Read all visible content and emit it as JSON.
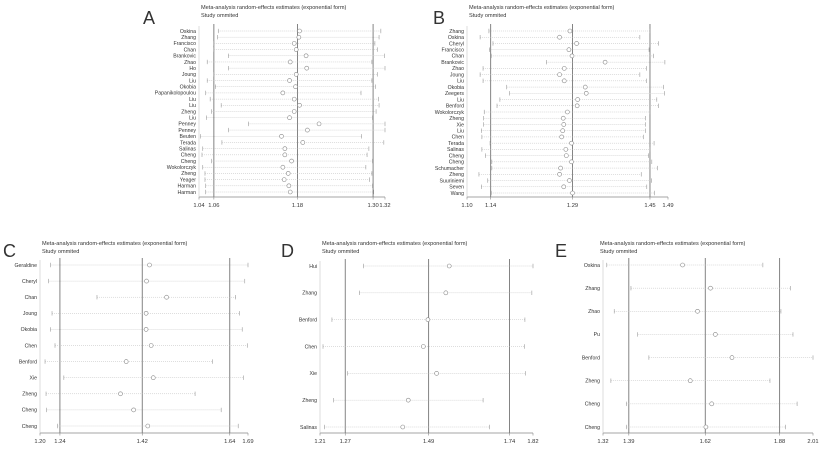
{
  "chart_data": [
    {
      "type": "forest",
      "panel_label": "A",
      "title": "Meta-analysis random-effects estimates (exponential form)",
      "subtitle": "Study ommited",
      "xscale": "log",
      "xlim": [
        1.04,
        1.32
      ],
      "ticks": [
        "1.04",
        "1.06",
        "1.18",
        "1.30",
        "1.32"
      ],
      "reference_lines": [
        1.06,
        1.18,
        1.3
      ],
      "studies": [
        {
          "name": "Oskina",
          "est": 1.183,
          "lo": 1.066,
          "hi": 1.313
        },
        {
          "name": "Zhang",
          "est": 1.182,
          "lo": 1.065,
          "hi": 1.31
        },
        {
          "name": "Francisco",
          "est": 1.175,
          "lo": 1.06,
          "hi": 1.303
        },
        {
          "name": "Chan",
          "est": 1.178,
          "lo": 1.06,
          "hi": 1.307
        },
        {
          "name": "Brankovic",
          "est": 1.193,
          "lo": 1.08,
          "hi": 1.319
        },
        {
          "name": "Zhao",
          "est": 1.169,
          "lo": 1.051,
          "hi": 1.298
        },
        {
          "name": "Ho",
          "est": 1.194,
          "lo": 1.08,
          "hi": 1.32
        },
        {
          "name": "Joung",
          "est": 1.178,
          "lo": 1.06,
          "hi": 1.307
        },
        {
          "name": "Liu",
          "est": 1.168,
          "lo": 1.051,
          "hi": 1.298
        },
        {
          "name": "Okobia",
          "est": 1.177,
          "lo": 1.062,
          "hi": 1.304
        },
        {
          "name": "Papanikolopoulou",
          "est": 1.158,
          "lo": 1.049,
          "hi": 1.28
        },
        {
          "name": "Liu",
          "est": 1.175,
          "lo": 1.055,
          "hi": 1.309
        },
        {
          "name": "Liu",
          "est": 1.183,
          "lo": 1.07,
          "hi": 1.31
        },
        {
          "name": "Zheng",
          "est": 1.175,
          "lo": 1.057,
          "hi": 1.305
        },
        {
          "name": "Liu",
          "est": 1.168,
          "lo": 1.05,
          "hi": 1.299
        },
        {
          "name": "Penney",
          "est": 1.213,
          "lo": 1.108,
          "hi": 1.32
        },
        {
          "name": "Penney",
          "est": 1.195,
          "lo": 1.08,
          "hi": 1.32
        },
        {
          "name": "Beuten",
          "est": 1.156,
          "lo": 1.042,
          "hi": 1.281
        },
        {
          "name": "Terada",
          "est": 1.188,
          "lo": 1.071,
          "hi": 1.318
        },
        {
          "name": "Salinas",
          "est": 1.161,
          "lo": 1.045,
          "hi": 1.293
        },
        {
          "name": "Cheng",
          "est": 1.161,
          "lo": 1.044,
          "hi": 1.29
        },
        {
          "name": "Cheng",
          "est": 1.171,
          "lo": 1.057,
          "hi": 1.299
        },
        {
          "name": "Wokolorczyk",
          "est": 1.158,
          "lo": 1.045,
          "hi": 1.288
        },
        {
          "name": "Zheng",
          "est": 1.166,
          "lo": 1.048,
          "hi": 1.298
        },
        {
          "name": "Yeager",
          "est": 1.16,
          "lo": 1.048,
          "hi": 1.294
        },
        {
          "name": "Harman",
          "est": 1.167,
          "lo": 1.049,
          "hi": 1.299
        },
        {
          "name": "Harman",
          "est": 1.169,
          "lo": 1.049,
          "hi": 1.301
        }
      ]
    },
    {
      "type": "forest",
      "panel_label": "B",
      "title": "Meta-analysis random-effects estimates (exponential form)",
      "subtitle": "Study ommited",
      "xscale": "log",
      "xlim": [
        1.1,
        1.49
      ],
      "ticks": [
        "1.10",
        "1.14",
        "1.29",
        "1.45",
        "1.49"
      ],
      "reference_lines": [
        1.14,
        1.29,
        1.45
      ],
      "studies": [
        {
          "name": "Zhang",
          "est": 1.285,
          "lo": 1.137,
          "hi": 1.45
        },
        {
          "name": "Oskina",
          "est": 1.265,
          "lo": 1.122,
          "hi": 1.428
        },
        {
          "name": "Cheryl",
          "est": 1.298,
          "lo": 1.144,
          "hi": 1.469
        },
        {
          "name": "Francisco",
          "est": 1.283,
          "lo": 1.138,
          "hi": 1.448
        },
        {
          "name": "Chan",
          "est": 1.289,
          "lo": 1.141,
          "hi": 1.458
        },
        {
          "name": "Brankovic",
          "est": 1.355,
          "lo": 1.24,
          "hi": 1.483
        },
        {
          "name": "Zhao",
          "est": 1.274,
          "lo": 1.127,
          "hi": 1.442
        },
        {
          "name": "Joung",
          "est": 1.265,
          "lo": 1.122,
          "hi": 1.428
        },
        {
          "name": "Liu",
          "est": 1.274,
          "lo": 1.127,
          "hi": 1.442
        },
        {
          "name": "Okobia",
          "est": 1.315,
          "lo": 1.168,
          "hi": 1.48
        },
        {
          "name": "Zeegers",
          "est": 1.317,
          "lo": 1.173,
          "hi": 1.482
        },
        {
          "name": "Liu",
          "est": 1.3,
          "lo": 1.156,
          "hi": 1.465
        },
        {
          "name": "Benford",
          "est": 1.299,
          "lo": 1.151,
          "hi": 1.469
        },
        {
          "name": "Wokolorczyk",
          "est": 1.28,
          "lo": 1.129,
          "hi": 1.45
        },
        {
          "name": "Zheng",
          "est": 1.272,
          "lo": 1.128,
          "hi": 1.44
        },
        {
          "name": "Xie",
          "est": 1.273,
          "lo": 1.128,
          "hi": 1.44
        },
        {
          "name": "Liu",
          "est": 1.271,
          "lo": 1.124,
          "hi": 1.44
        },
        {
          "name": "Chen",
          "est": 1.269,
          "lo": 1.125,
          "hi": 1.436
        },
        {
          "name": "Terada",
          "est": 1.288,
          "lo": 1.139,
          "hi": 1.459
        },
        {
          "name": "Salinas",
          "est": 1.277,
          "lo": 1.125,
          "hi": 1.45
        },
        {
          "name": "Cheng",
          "est": 1.278,
          "lo": 1.131,
          "hi": 1.447
        },
        {
          "name": "Cheng",
          "est": 1.288,
          "lo": 1.142,
          "hi": 1.454
        },
        {
          "name": "Schumacher",
          "est": 1.267,
          "lo": 1.142,
          "hi": 1.467
        },
        {
          "name": "Zheng",
          "est": 1.265,
          "lo": 1.12,
          "hi": 1.431
        },
        {
          "name": "Suuriniemi",
          "est": 1.284,
          "lo": 1.135,
          "hi": 1.453
        },
        {
          "name": "Seven",
          "est": 1.273,
          "lo": 1.124,
          "hi": 1.443
        },
        {
          "name": "Wang",
          "est": 1.29,
          "lo": 1.141,
          "hi": 1.46
        }
      ]
    },
    {
      "type": "forest",
      "panel_label": "C",
      "title": "Meta-analysis random-effects estimates (exponential form)",
      "subtitle": "Study ommited",
      "xscale": "log",
      "xlim": [
        1.2,
        1.69
      ],
      "ticks": [
        "1.20",
        "1.24",
        "1.42",
        "1.64",
        "1.69"
      ],
      "reference_lines": [
        1.24,
        1.42,
        1.64
      ],
      "studies": [
        {
          "name": "Geraldine",
          "est": 1.437,
          "lo": 1.221,
          "hi": 1.69
        },
        {
          "name": "Cheryl",
          "est": 1.43,
          "lo": 1.217,
          "hi": 1.681
        },
        {
          "name": "Chan",
          "est": 1.478,
          "lo": 1.318,
          "hi": 1.656
        },
        {
          "name": "Joung",
          "est": 1.429,
          "lo": 1.224,
          "hi": 1.667
        },
        {
          "name": "Okobia",
          "est": 1.429,
          "lo": 1.221,
          "hi": 1.674
        },
        {
          "name": "Chen",
          "est": 1.441,
          "lo": 1.23,
          "hi": 1.688
        },
        {
          "name": "Benford",
          "est": 1.383,
          "lo": 1.21,
          "hi": 1.594
        },
        {
          "name": "Xie",
          "est": 1.446,
          "lo": 1.248,
          "hi": 1.677
        },
        {
          "name": "Zheng",
          "est": 1.37,
          "lo": 1.212,
          "hi": 1.549
        },
        {
          "name": "Cheng",
          "est": 1.4,
          "lo": 1.213,
          "hi": 1.617
        },
        {
          "name": "Cheng",
          "est": 1.433,
          "lo": 1.235,
          "hi": 1.663
        }
      ]
    },
    {
      "type": "forest",
      "panel_label": "D",
      "title": "Meta-analysis random-effects estimates (exponential form)",
      "subtitle": "Study ommited",
      "xscale": "log",
      "xlim": [
        1.21,
        1.82
      ],
      "ticks": [
        "1.21",
        "1.27",
        "1.49",
        "1.74",
        "1.82"
      ],
      "reference_lines": [
        1.27,
        1.49,
        1.74
      ],
      "studies": [
        {
          "name": "Hui",
          "est": 1.55,
          "lo": 1.315,
          "hi": 1.82
        },
        {
          "name": "Zhang",
          "est": 1.54,
          "lo": 1.305,
          "hi": 1.816
        },
        {
          "name": "Benford",
          "est": 1.488,
          "lo": 1.238,
          "hi": 1.792
        },
        {
          "name": "Chen",
          "est": 1.475,
          "lo": 1.217,
          "hi": 1.79
        },
        {
          "name": "Xie",
          "est": 1.513,
          "lo": 1.276,
          "hi": 1.794
        },
        {
          "name": "Zheng",
          "est": 1.433,
          "lo": 1.242,
          "hi": 1.654
        },
        {
          "name": "Salinas",
          "est": 1.418,
          "lo": 1.22,
          "hi": 1.675
        }
      ]
    },
    {
      "type": "forest",
      "panel_label": "E",
      "title": "Meta-analysis random-effects estimates (exponential form)",
      "subtitle": "Study ommited",
      "xscale": "log",
      "xlim": [
        1.32,
        2.01
      ],
      "ticks": [
        "1.32",
        "1.39",
        "1.62",
        "1.88",
        "2.01"
      ],
      "reference_lines": [
        1.39,
        1.62,
        1.88
      ],
      "studies": [
        {
          "name": "Oskina",
          "est": 1.548,
          "lo": 1.33,
          "hi": 1.818
        },
        {
          "name": "Zhang",
          "est": 1.637,
          "lo": 1.396,
          "hi": 1.921
        },
        {
          "name": "Zhao",
          "est": 1.595,
          "lo": 1.35,
          "hi": 1.885
        },
        {
          "name": "Pu",
          "est": 1.653,
          "lo": 1.415,
          "hi": 1.931
        },
        {
          "name": "Benford",
          "est": 1.709,
          "lo": 1.447,
          "hi": 2.01
        },
        {
          "name": "Zheng",
          "est": 1.572,
          "lo": 1.341,
          "hi": 1.844
        },
        {
          "name": "Cheng",
          "est": 1.641,
          "lo": 1.383,
          "hi": 1.947
        },
        {
          "name": "Cheng",
          "est": 1.622,
          "lo": 1.383,
          "hi": 1.903
        }
      ]
    }
  ]
}
